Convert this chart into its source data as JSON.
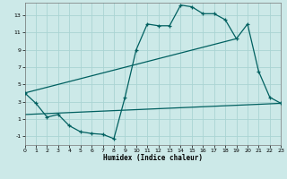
{
  "xlabel": "Humidex (Indice chaleur)",
  "background_color": "#cce9e8",
  "grid_color": "#aad4d3",
  "line_color": "#006060",
  "xlim": [
    0,
    23
  ],
  "ylim": [
    -2,
    14.5
  ],
  "xticks": [
    0,
    1,
    2,
    3,
    4,
    5,
    6,
    7,
    8,
    9,
    10,
    11,
    12,
    13,
    14,
    15,
    16,
    17,
    18,
    19,
    20,
    21,
    22,
    23
  ],
  "yticks": [
    -1,
    1,
    3,
    5,
    7,
    9,
    11,
    13
  ],
  "line1_x": [
    0,
    1,
    2,
    3,
    4,
    5,
    6,
    7,
    8,
    9,
    10,
    11,
    12,
    13,
    14,
    15,
    16,
    17,
    18,
    19,
    20,
    21,
    22,
    23
  ],
  "line1_y": [
    4.0,
    2.8,
    1.2,
    1.5,
    0.2,
    -0.5,
    -0.7,
    -0.8,
    -1.3,
    3.5,
    9.0,
    12.0,
    11.8,
    11.8,
    14.2,
    14.0,
    13.2,
    13.2,
    12.5,
    10.3,
    12.0,
    6.5,
    3.5,
    2.8
  ],
  "line2_x": [
    0,
    23
  ],
  "line2_y": [
    1.5,
    2.8
  ],
  "line3_x": [
    0,
    19
  ],
  "line3_y": [
    4.0,
    10.3
  ]
}
